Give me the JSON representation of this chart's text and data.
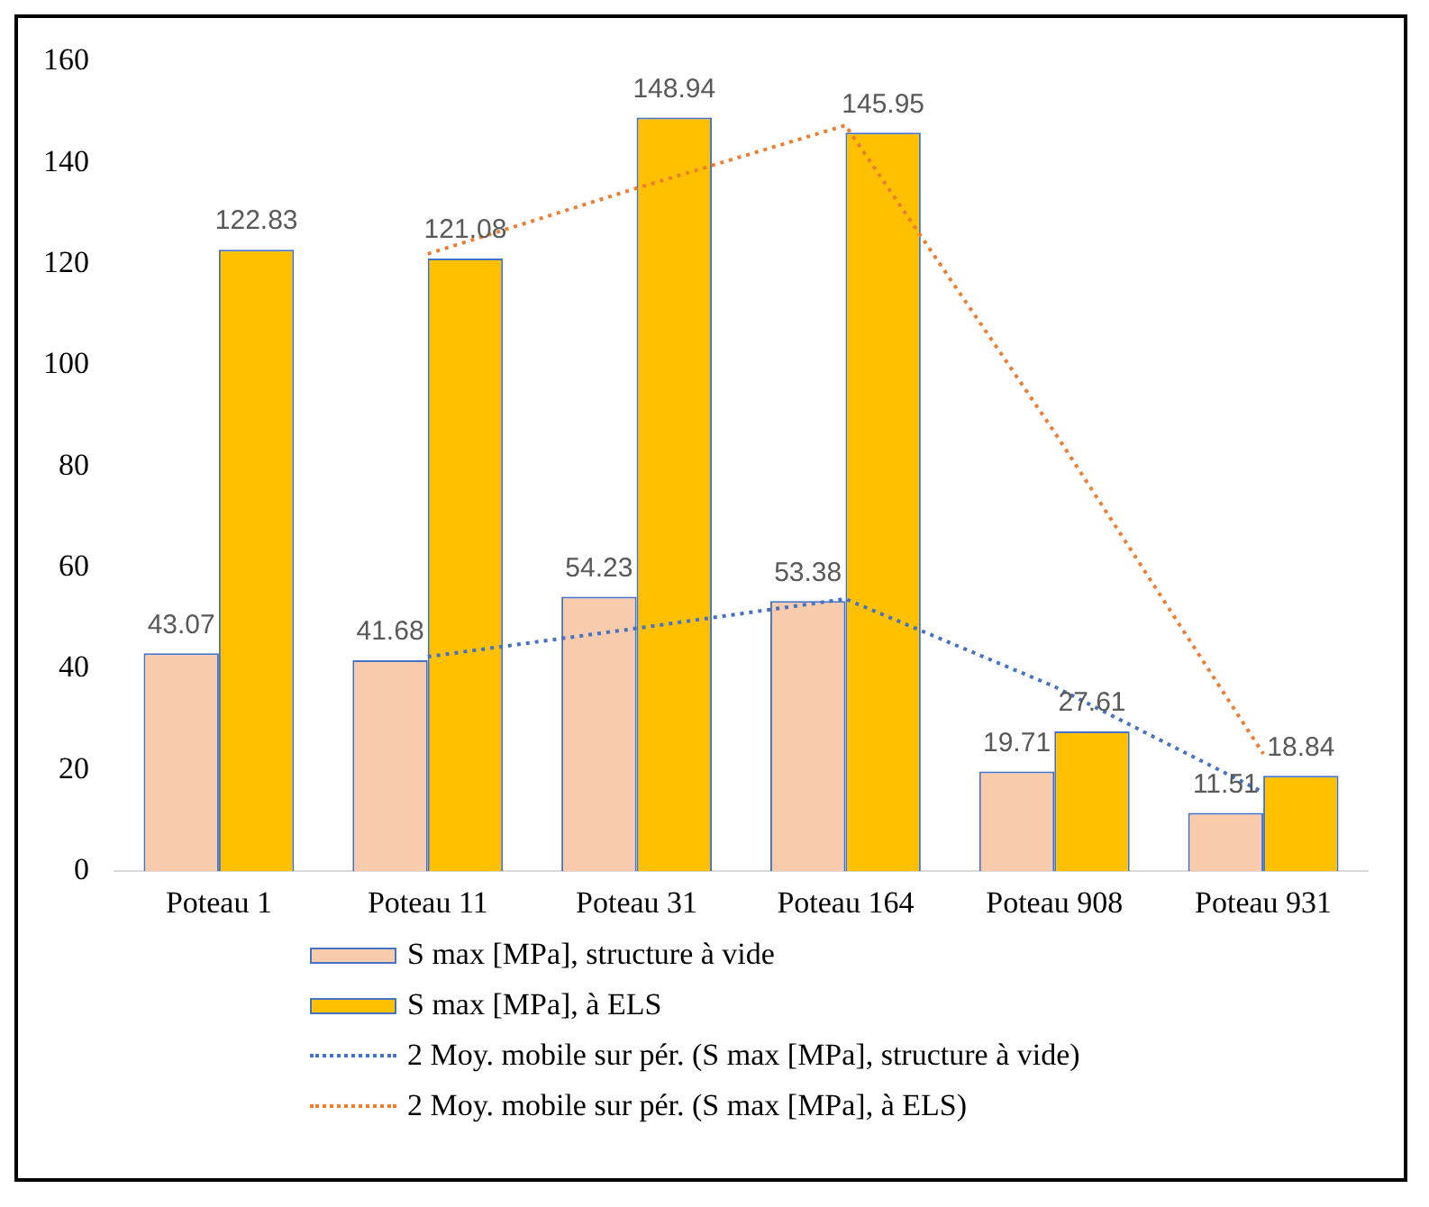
{
  "chart_data": {
    "type": "bar",
    "categories": [
      "Poteau 1",
      "Poteau 11",
      "Poteau 31",
      "Poteau 164",
      "Poteau 908",
      "Poteau 931"
    ],
    "series": [
      {
        "name": "S max [MPa], structure à vide",
        "color": "#f8cbad",
        "values": [
          43.07,
          41.68,
          54.23,
          53.38,
          19.71,
          11.51
        ],
        "value_labels": [
          "43.07",
          "41.68",
          "54.23",
          "53.38",
          "19.71",
          "11.51"
        ]
      },
      {
        "name": "S max [MPa],  à ELS",
        "color": "#ffc000",
        "values": [
          122.83,
          121.08,
          148.94,
          145.95,
          27.61,
          18.84
        ],
        "value_labels": [
          "122.83",
          "121.08",
          "148.94",
          "145.95",
          "27.61",
          "18.84"
        ]
      },
      {
        "name": "2 Moy. mobile sur pér. (S max [MPa], structure à vide)",
        "type": "line",
        "color": "#4472c4",
        "line_style": "dotted",
        "values": [
          null,
          42.4,
          48.0,
          53.8,
          36.5,
          15.6
        ]
      },
      {
        "name": "2 Moy. mobile sur pér. (S max [MPa],  à ELS)",
        "type": "line",
        "color": "#ed7d31",
        "line_style": "dotted",
        "values": [
          null,
          122.0,
          135.0,
          147.4,
          86.8,
          23.2
        ]
      }
    ],
    "ylim": [
      0,
      160
    ],
    "yticks": [
      0,
      20,
      40,
      60,
      80,
      100,
      120,
      140,
      160
    ],
    "grid": false,
    "legend": "bottom",
    "marker": "none"
  }
}
